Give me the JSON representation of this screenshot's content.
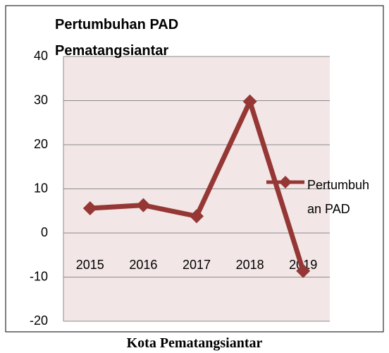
{
  "chart_data": {
    "type": "line",
    "title": "Pertumbuhan PAD Pematangsiantar",
    "caption": "Kota Pematangsiantar",
    "categories": [
      "2015",
      "2016",
      "2017",
      "2018",
      "2019"
    ],
    "series": [
      {
        "name": "Pertumbuhan PAD",
        "color": "#953735",
        "values": [
          5.6,
          6.3,
          3.8,
          29.8,
          -8.6
        ]
      }
    ],
    "ylim": [
      -20,
      40
    ],
    "yticks": [
      -20,
      -10,
      0,
      10,
      20,
      30,
      40
    ],
    "grid": true,
    "legend": "right",
    "plot_background": "#f2e6e6"
  }
}
